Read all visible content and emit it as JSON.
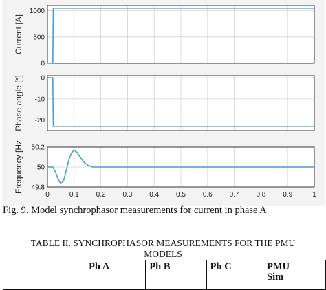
{
  "figure": {
    "caption": "Fig. 9. Model synchrophasor measurements for current in phase A",
    "x_ticks": [
      "0",
      "0.1",
      "0.2",
      "0.3",
      "0.4",
      "0.5",
      "0.6",
      "0.7",
      "0.8",
      "0.9",
      "1"
    ],
    "line_color": "#4a9bd1"
  },
  "chart_data": [
    {
      "type": "line",
      "ylabel": "Current [A]",
      "xlim": [
        0,
        1
      ],
      "ylim": [
        0,
        1100
      ],
      "yticks": [
        0,
        500,
        1000
      ],
      "grid": true,
      "series": [
        {
          "x": [
            0,
            0.02,
            0.02,
            0.022,
            1
          ],
          "y": [
            0,
            0,
            0,
            1050,
            1050
          ]
        }
      ]
    },
    {
      "type": "line",
      "ylabel": "Phase angle [°]",
      "xlim": [
        0,
        1
      ],
      "ylim": [
        -25,
        1
      ],
      "yticks": [
        0,
        -10,
        -20
      ],
      "grid": true,
      "series": [
        {
          "x": [
            0,
            0.02,
            0.022,
            1
          ],
          "y": [
            0,
            0,
            -23,
            -23
          ]
        }
      ]
    },
    {
      "type": "line",
      "ylabel": "Frequency [Hz",
      "xlim": [
        0,
        1
      ],
      "ylim": [
        49.8,
        50.2
      ],
      "yticks": [
        49.8,
        50,
        50.2
      ],
      "grid": true,
      "series": [
        {
          "x": [
            0,
            0.02,
            0.03,
            0.04,
            0.05,
            0.06,
            0.07,
            0.08,
            0.09,
            0.1,
            0.11,
            0.12,
            0.13,
            0.14,
            0.15,
            0.16,
            0.17,
            0.18,
            0.2,
            1
          ],
          "y": [
            50,
            50,
            49.95,
            49.88,
            49.83,
            49.86,
            49.96,
            50.07,
            50.14,
            50.17,
            50.15,
            50.11,
            50.07,
            50.04,
            50.02,
            50.01,
            50.0,
            50.0,
            50.0,
            50.0
          ]
        }
      ]
    }
  ],
  "table": {
    "title_line1": "TABLE II.  SYNCHROPHASOR MEASUREMENTS FOR THE PMU",
    "title_line2": "MODELS",
    "headers": [
      "",
      "Ph A",
      "Ph B",
      "Ph C",
      "PMU\nSim"
    ]
  }
}
